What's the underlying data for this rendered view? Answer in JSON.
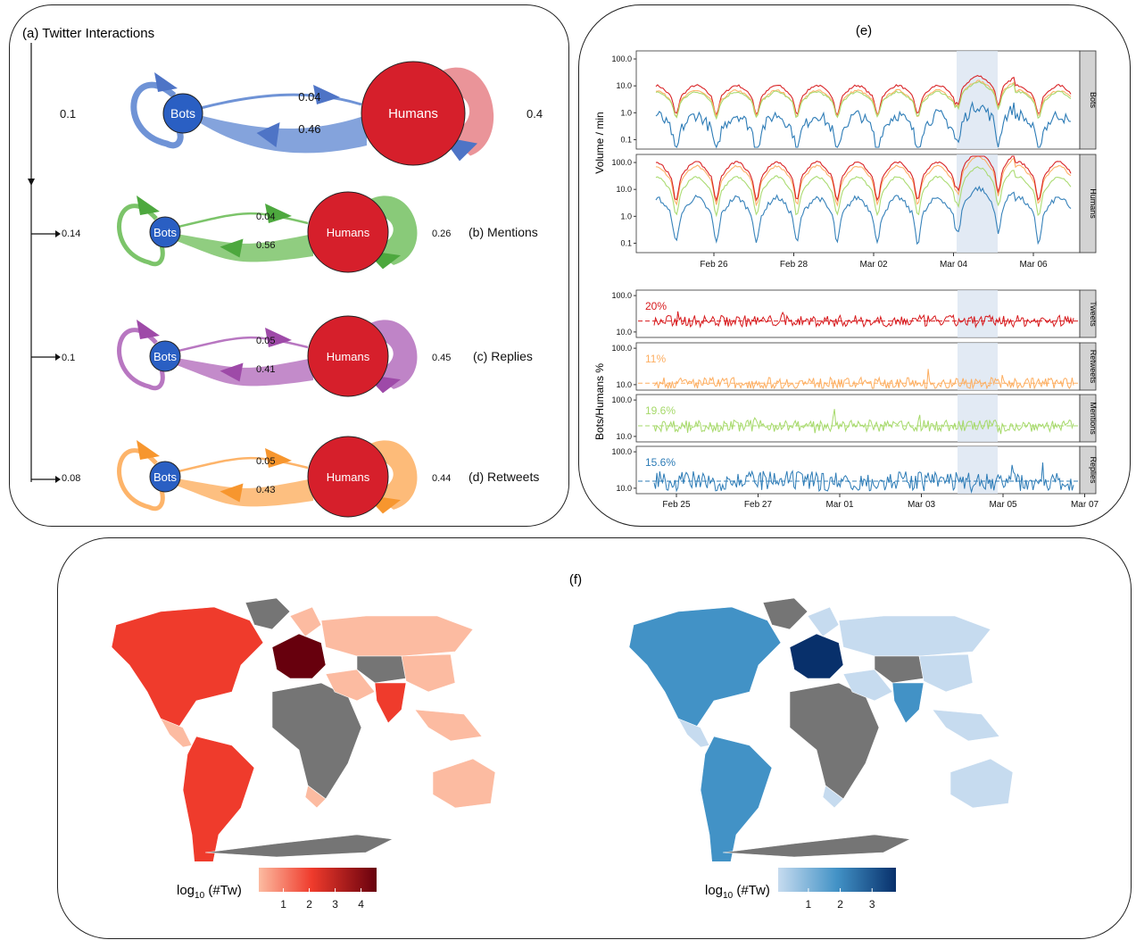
{
  "panel_a": {
    "title": "(a) Twitter Interactions",
    "networks": [
      {
        "label": "",
        "bots": "Bots",
        "humans": "Humans",
        "bots_self": "0.1",
        "bots_to_humans": "0.04",
        "humans_to_bots": "0.46",
        "humans_self": "0.4",
        "color": "#6f93d6",
        "arrow": "#4e74c6"
      },
      {
        "label": "(b) Mentions",
        "bots": "Bots",
        "humans": "Humans",
        "bots_self": "0.14",
        "bots_to_humans": "0.04",
        "humans_to_bots": "0.56",
        "humans_self": "0.26",
        "color": "#7cc46a",
        "arrow": "#4da83e"
      },
      {
        "label": "(c) Replies",
        "bots": "Bots",
        "humans": "Humans",
        "bots_self": "0.1",
        "bots_to_humans": "0.05",
        "humans_to_bots": "0.41",
        "humans_self": "0.45",
        "color": "#b877c1",
        "arrow": "#9e4aa8"
      },
      {
        "label": "(d) Retweets",
        "bots": "Bots",
        "humans": "Humans",
        "bots_self": "0.08",
        "bots_to_humans": "0.05",
        "humans_to_bots": "0.43",
        "humans_self": "0.44",
        "color": "#fdb46a",
        "arrow": "#f7962e"
      }
    ],
    "colors": {
      "bots_node": "#2a5fc3",
      "humans_node": "#d61f2b",
      "humans_self_top": "#e8888e"
    }
  },
  "panel_e": {
    "title": "(e)",
    "volume_ylabel": "Volume / min",
    "ratio_ylabel": "Bots/Humans %",
    "volume_ticks": [
      "100.0",
      "10.0",
      "1.0",
      "0.1"
    ],
    "ratio_ticks": [
      "100.0",
      "10.0"
    ],
    "volume_strips": [
      "Bots",
      "Humans"
    ],
    "ratio_strips": [
      "Tweets",
      "Retweets",
      "Mentions",
      "Replies"
    ],
    "volume_xticks": [
      "Feb 26",
      "Feb 28",
      "Mar 02",
      "Mar 04",
      "Mar 06"
    ],
    "ratio_xticks": [
      "Feb 25",
      "Feb 27",
      "Mar 01",
      "Mar 03",
      "Mar 05",
      "Mar 07"
    ],
    "ratio_labels": [
      "20%",
      "11%",
      "19.6%",
      "15.6%"
    ],
    "series_colors": {
      "tweets": "#d7191c",
      "retweets": "#fdae61",
      "mentions": "#a6d96a",
      "replies": "#2c7bb6"
    },
    "highlight_color": "#dbe5f1"
  },
  "panel_f": {
    "title": "(f)",
    "legend_left": {
      "label": "log",
      "sub": "10",
      "suffix": " (#Tw)",
      "ticks": [
        "1",
        "2",
        "3",
        "4"
      ]
    },
    "legend_right": {
      "label": "log",
      "sub": "10",
      "suffix": " (#Tw)",
      "ticks": [
        "1",
        "2",
        "3"
      ]
    },
    "colors": {
      "no_data": "#757575",
      "red_low": "#fcbba1",
      "red_mid": "#ef3b2c",
      "red_high": "#67000d",
      "blue_low": "#c6dbef",
      "blue_mid": "#4292c6",
      "blue_high": "#08306b"
    }
  }
}
